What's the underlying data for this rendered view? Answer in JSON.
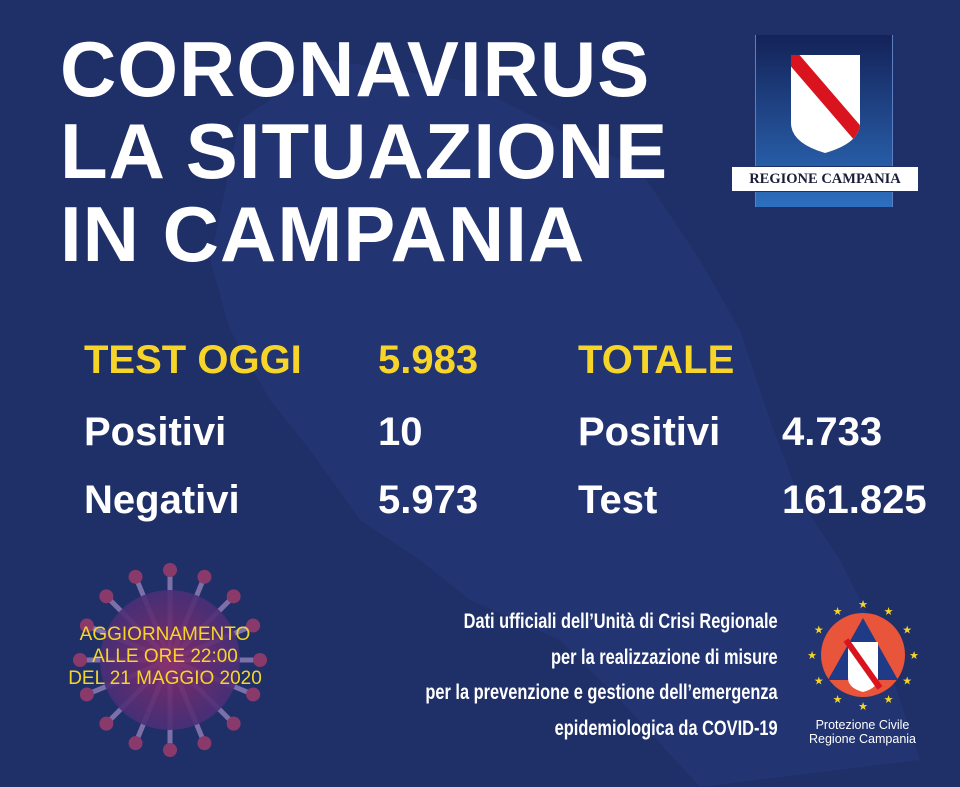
{
  "title": {
    "line1": "CORONAVIRUS",
    "line2": "LA SITUAZIONE",
    "line3": "IN CAMPANIA"
  },
  "logo": {
    "label": "REGIONE CAMPANIA"
  },
  "today": {
    "header": "TEST OGGI",
    "tests": "5.983",
    "positive_label": "Positivi",
    "positive": "10",
    "negative_label": "Negativi",
    "negative": "5.973"
  },
  "total": {
    "header": "TOTALE",
    "positive_label": "Positivi",
    "positive": "4.733",
    "test_label": "Test",
    "tests": "161.825"
  },
  "update": {
    "line1": "AGGIORNAMENTO",
    "line2": "ALLE ORE 22:00",
    "line3": "DEL 21 MAGGIO 2020"
  },
  "source": {
    "line1": "Dati ufficiali dell’Unità di Crisi Regionale",
    "line2": "per la realizzazione di misure",
    "line3": "per la prevenzione e gestione dell’emergenza",
    "line4": "epidemiologica da COVID-19"
  },
  "civil_protection": {
    "line1": "Protezione Civile",
    "line2": "Regione Campania"
  },
  "colors": {
    "background": "#1f2f68",
    "accent": "#f7d528",
    "text": "#ffffff"
  }
}
